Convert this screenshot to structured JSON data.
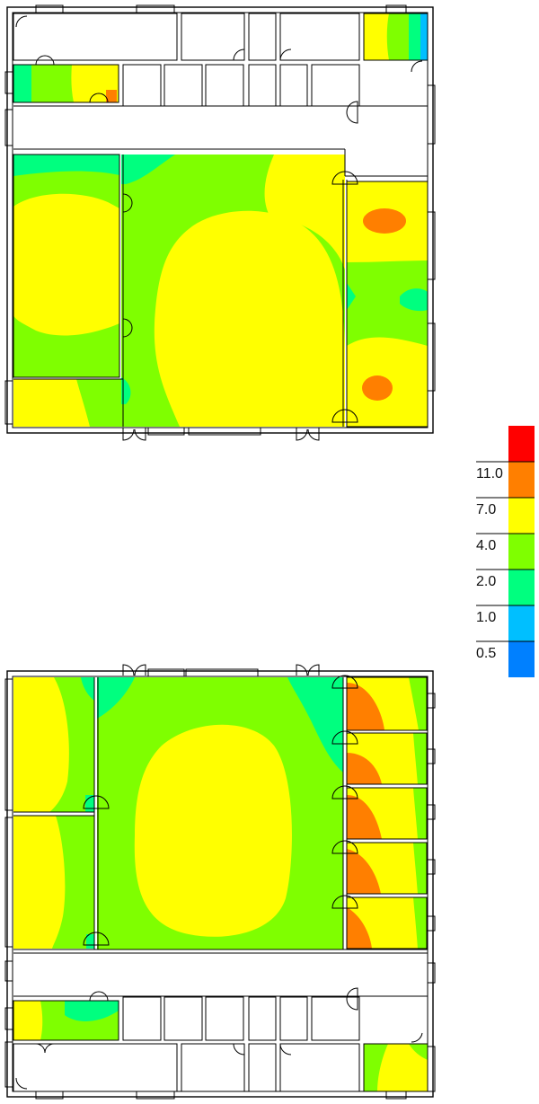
{
  "legend": {
    "bands": [
      {
        "label": "",
        "color": "#ff0000"
      },
      {
        "label": "11.0",
        "color": "#ff7f00"
      },
      {
        "label": "7.0",
        "color": "#ffff00"
      },
      {
        "label": "4.0",
        "color": "#7fff00"
      },
      {
        "label": "2.0",
        "color": "#00ff7f"
      },
      {
        "label": "1.0",
        "color": "#00bfff"
      },
      {
        "label": "0.5",
        "color": "#0080ff"
      }
    ]
  },
  "colors": {
    "red": "#ff0000",
    "orange": "#ff7f00",
    "yellow": "#ffff00",
    "green": "#7fff00",
    "teal": "#00ff7f",
    "cyan": "#00bfff",
    "blue": "#0080ff",
    "wall": "#000000",
    "background": "#ffffff"
  },
  "plans": [
    {
      "name": "floor-plan-top"
    },
    {
      "name": "floor-plan-bottom"
    }
  ]
}
